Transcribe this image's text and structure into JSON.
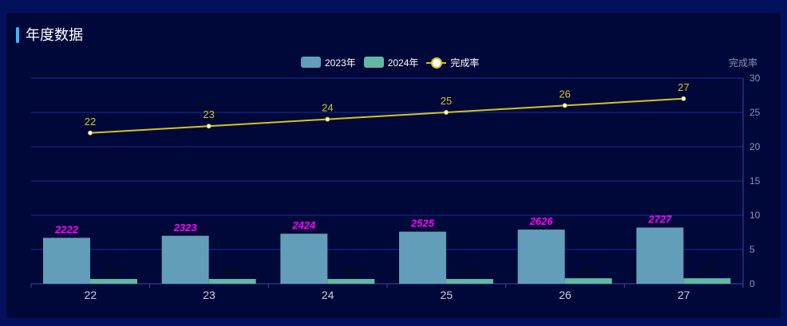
{
  "header": {
    "title": "年度数据"
  },
  "legend": [
    {
      "label": "2023年",
      "color": "#629eb9",
      "type": "bar"
    },
    {
      "label": "2024年",
      "color": "#62b8a2",
      "type": "bar"
    },
    {
      "label": "完成率",
      "color": "#d4c31f",
      "type": "line"
    }
  ],
  "chart_data": {
    "type": "bar",
    "categories": [
      "22",
      "23",
      "24",
      "25",
      "26",
      "27"
    ],
    "series": [
      {
        "name": "2023年",
        "type": "bar",
        "values": [
          6.7,
          7.0,
          7.3,
          7.6,
          7.9,
          8.2
        ],
        "labels": [
          "2222",
          "2323",
          "2424",
          "2525",
          "2626",
          "2727"
        ],
        "color": "#629eb9",
        "label_color": "#ff00ff"
      },
      {
        "name": "2024年",
        "type": "bar",
        "values": [
          0.7,
          0.7,
          0.7,
          0.7,
          0.8,
          0.8
        ],
        "labels": [
          "222",
          "233",
          "242",
          "252",
          "262",
          "277"
        ],
        "color": "#62b8a2",
        "label_color": "#0a0a0a"
      },
      {
        "name": "完成率",
        "type": "line",
        "values": [
          22,
          23,
          24,
          25,
          26,
          27
        ],
        "color": "#d4c31f",
        "label_color": "#d4c31f"
      }
    ],
    "y_axis": {
      "name": "完成率",
      "position": "right",
      "ylim": [
        0,
        30
      ],
      "ticks": [
        0,
        5,
        10,
        15,
        20,
        25,
        30
      ]
    },
    "grid": true,
    "legend_position": "top-center"
  }
}
